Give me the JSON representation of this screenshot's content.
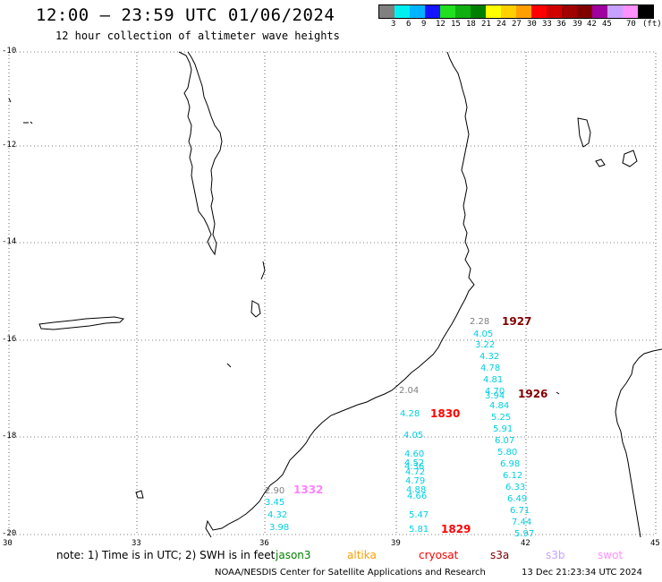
{
  "header": {
    "title": "12:00 — 23:59 UTC 01/06/2024",
    "subtitle": "12 hour collection of altimeter wave heights"
  },
  "legend": {
    "colors": [
      "#808080",
      "#00f0f0",
      "#00b4ff",
      "#1414ff",
      "#20e020",
      "#10b010",
      "#008000",
      "#ffff00",
      "#ffd000",
      "#ffa000",
      "#ff0000",
      "#d00000",
      "#a00000",
      "#800000",
      "#a000a0",
      "#c8a0ff",
      "#ff90ff",
      "#000000"
    ],
    "labels": [
      "3",
      "6",
      "9",
      "12",
      "15",
      "18",
      "21",
      "24",
      "27",
      "30",
      "33",
      "36",
      "39",
      "42",
      "45",
      "70",
      "(ft)"
    ],
    "unit": "(ft)"
  },
  "axes": {
    "x_ticks": [
      "30",
      "33",
      "36",
      "39",
      "42",
      "45"
    ],
    "y_ticks": [
      "-10",
      "-12",
      "-14",
      "-16",
      "-18",
      "-20"
    ]
  },
  "passes": [
    {
      "label": "1927",
      "color": "#800000"
    },
    {
      "label": "1926",
      "color": "#800000"
    },
    {
      "label": "1830",
      "color": "#ff0000"
    },
    {
      "label": "1332",
      "color": "#ff80ff"
    },
    {
      "label": "1829",
      "color": "#ff0000"
    }
  ],
  "wave_labels": [
    {
      "v": "2.28",
      "c": "#808080"
    },
    {
      "v": "4.05",
      "c": "#00d0e0"
    },
    {
      "v": "3.22",
      "c": "#00d0e0"
    },
    {
      "v": "4.32",
      "c": "#00d0e0"
    },
    {
      "v": "4.78",
      "c": "#00d0e0"
    },
    {
      "v": "4.81",
      "c": "#00d0e0"
    },
    {
      "v": "4.70",
      "c": "#00d0e0"
    },
    {
      "v": "3.94",
      "c": "#00d0e0"
    },
    {
      "v": "4.84",
      "c": "#00d0e0"
    },
    {
      "v": "5.25",
      "c": "#00d0e0"
    },
    {
      "v": "5.91",
      "c": "#00d0e0"
    },
    {
      "v": "6.07",
      "c": "#00d0e0"
    },
    {
      "v": "5.80",
      "c": "#00d0e0"
    },
    {
      "v": "6.98",
      "c": "#00d0e0"
    },
    {
      "v": "6.12",
      "c": "#00d0e0"
    },
    {
      "v": "6.33",
      "c": "#00d0e0"
    },
    {
      "v": "6.49",
      "c": "#00d0e0"
    },
    {
      "v": "6.71",
      "c": "#00d0e0"
    },
    {
      "v": "7.44",
      "c": "#00d0e0"
    },
    {
      "v": "5.97",
      "c": "#00d0e0"
    },
    {
      "v": "2.04",
      "c": "#808080"
    },
    {
      "v": "4.28",
      "c": "#00d0e0"
    },
    {
      "v": "4.05",
      "c": "#00d0e0"
    },
    {
      "v": "4.60",
      "c": "#00d0e0"
    },
    {
      "v": "4.52",
      "c": "#00d0e0"
    },
    {
      "v": "4.36",
      "c": "#00d0e0"
    },
    {
      "v": "4.72",
      "c": "#00d0e0"
    },
    {
      "v": "4.79",
      "c": "#00d0e0"
    },
    {
      "v": "4.88",
      "c": "#00d0e0"
    },
    {
      "v": "4.66",
      "c": "#00d0e0"
    },
    {
      "v": "5.47",
      "c": "#00d0e0"
    },
    {
      "v": "5.81",
      "c": "#00d0e0"
    },
    {
      "v": "2.90",
      "c": "#808080"
    },
    {
      "v": "3.45",
      "c": "#00d0e0"
    },
    {
      "v": "4.32",
      "c": "#00d0e0"
    },
    {
      "v": "3.98",
      "c": "#00d0e0"
    }
  ],
  "footer": {
    "note": "note:  1) Time is in UTC;  2) SWH is in feet",
    "satellites": [
      {
        "name": "jason3",
        "color": "#008000"
      },
      {
        "name": "altika",
        "color": "#ffa000"
      },
      {
        "name": "cryosat",
        "color": "#ff0000"
      },
      {
        "name": "s3a",
        "color": "#800000"
      },
      {
        "name": "s3b",
        "color": "#c8a0ff"
      },
      {
        "name": "swot",
        "color": "#ff90ff"
      }
    ],
    "credit": "NOAA/NESDIS Center for Satellite Applications and Research",
    "timestamp": "13 Dec 21:23:34 UTC 2024"
  }
}
